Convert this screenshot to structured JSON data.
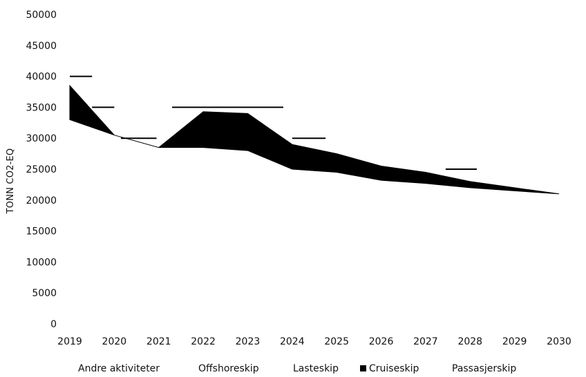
{
  "chart_data": {
    "type": "area",
    "title": "",
    "xlabel": "",
    "ylabel": "TONN CO2-EQ",
    "categories": [
      "2019",
      "2020",
      "2021",
      "2022",
      "2023",
      "2024",
      "2025",
      "2026",
      "2027",
      "2028",
      "2029",
      "2030"
    ],
    "ylim": [
      0,
      50000
    ],
    "yticks": [
      0,
      5000,
      10000,
      15000,
      20000,
      25000,
      30000,
      35000,
      40000,
      45000,
      50000
    ],
    "grid": false,
    "legend_position": "bottom",
    "legend": [
      {
        "name": "Andre aktiviteter",
        "marker": false
      },
      {
        "name": "Offshoreskip",
        "marker": false
      },
      {
        "name": "Lasteskip",
        "marker": false
      },
      {
        "name": "Cruiseskip",
        "marker": true
      },
      {
        "name": "Passasjerskip",
        "marker": false
      }
    ],
    "band": {
      "upper": [
        38500,
        30500,
        28500,
        34300,
        34000,
        29000,
        27500,
        25500,
        24500,
        23000,
        22000,
        21000
      ],
      "lower": [
        33000,
        30500,
        28500,
        28500,
        28000,
        25000,
        24500,
        23200,
        22700,
        22000,
        21500,
        21000
      ]
    },
    "level_marks": [
      {
        "x_start": 0.0,
        "x_end": 0.5,
        "y": 40000
      },
      {
        "x_start": 0.5,
        "x_end": 1.0,
        "y": 35000
      },
      {
        "x_start": 1.15,
        "x_end": 1.95,
        "y": 30000
      },
      {
        "x_start": 2.3,
        "x_end": 4.8,
        "y": 35000
      },
      {
        "x_start": 5.0,
        "x_end": 5.75,
        "y": 30000
      },
      {
        "x_start": 8.45,
        "x_end": 9.15,
        "y": 25000
      }
    ],
    "colors": {
      "band": "#000000",
      "marks": "#000000",
      "text": "#111111"
    }
  }
}
